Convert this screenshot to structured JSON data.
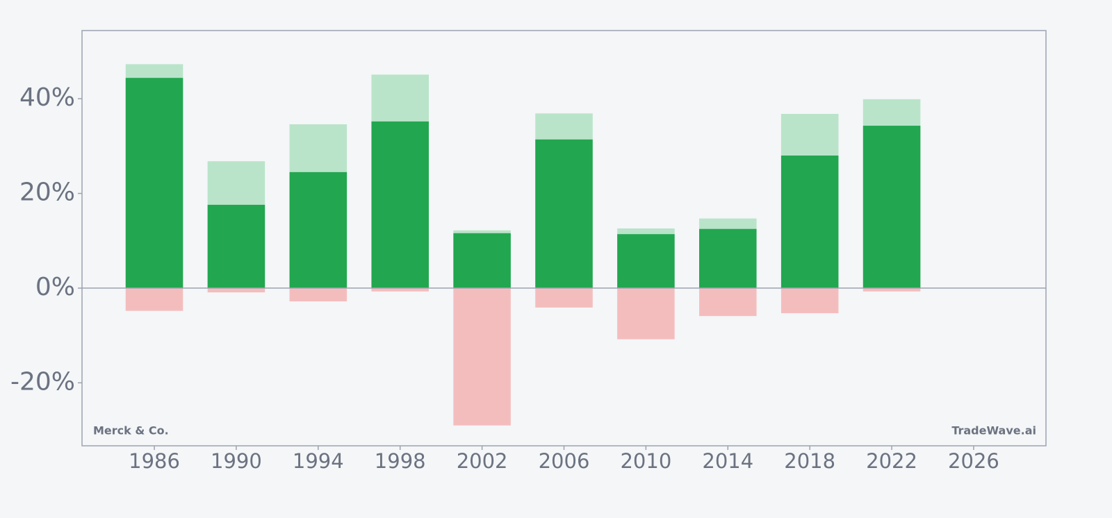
{
  "chart_data": {
    "type": "bar",
    "x": [
      1986,
      1990,
      1994,
      1998,
      2002,
      2006,
      2010,
      2014,
      2018,
      2022
    ],
    "series": [
      {
        "color": "#b9e4c9",
        "values": [
          47.3,
          26.8,
          34.6,
          45.1,
          12.2,
          36.9,
          12.6,
          14.7,
          36.8,
          39.9
        ]
      },
      {
        "color": "#22a750",
        "values": [
          44.4,
          17.6,
          24.5,
          35.2,
          11.6,
          31.4,
          11.4,
          12.5,
          28.0,
          34.3
        ]
      },
      {
        "color": "#f4bdbd",
        "values": [
          -4.8,
          -0.9,
          -2.8,
          -0.7,
          -29.0,
          -4.1,
          -10.8,
          -5.9,
          -5.3,
          -0.7
        ]
      }
    ],
    "xlim": [
      1982.47,
      2029.53
    ],
    "ylim": [
      -33.3,
      54.4
    ],
    "xticks": [
      1986,
      1990,
      1994,
      1998,
      2002,
      2006,
      2010,
      2014,
      2018,
      2022,
      2026
    ],
    "yticks": [
      {
        "value": -20,
        "label": "-20%"
      },
      {
        "value": 0,
        "label": "0%"
      },
      {
        "value": 20,
        "label": "20%"
      },
      {
        "value": 40,
        "label": "40%"
      }
    ],
    "annotations": [
      "Merck & Co.",
      "TradeWave.ai"
    ]
  }
}
